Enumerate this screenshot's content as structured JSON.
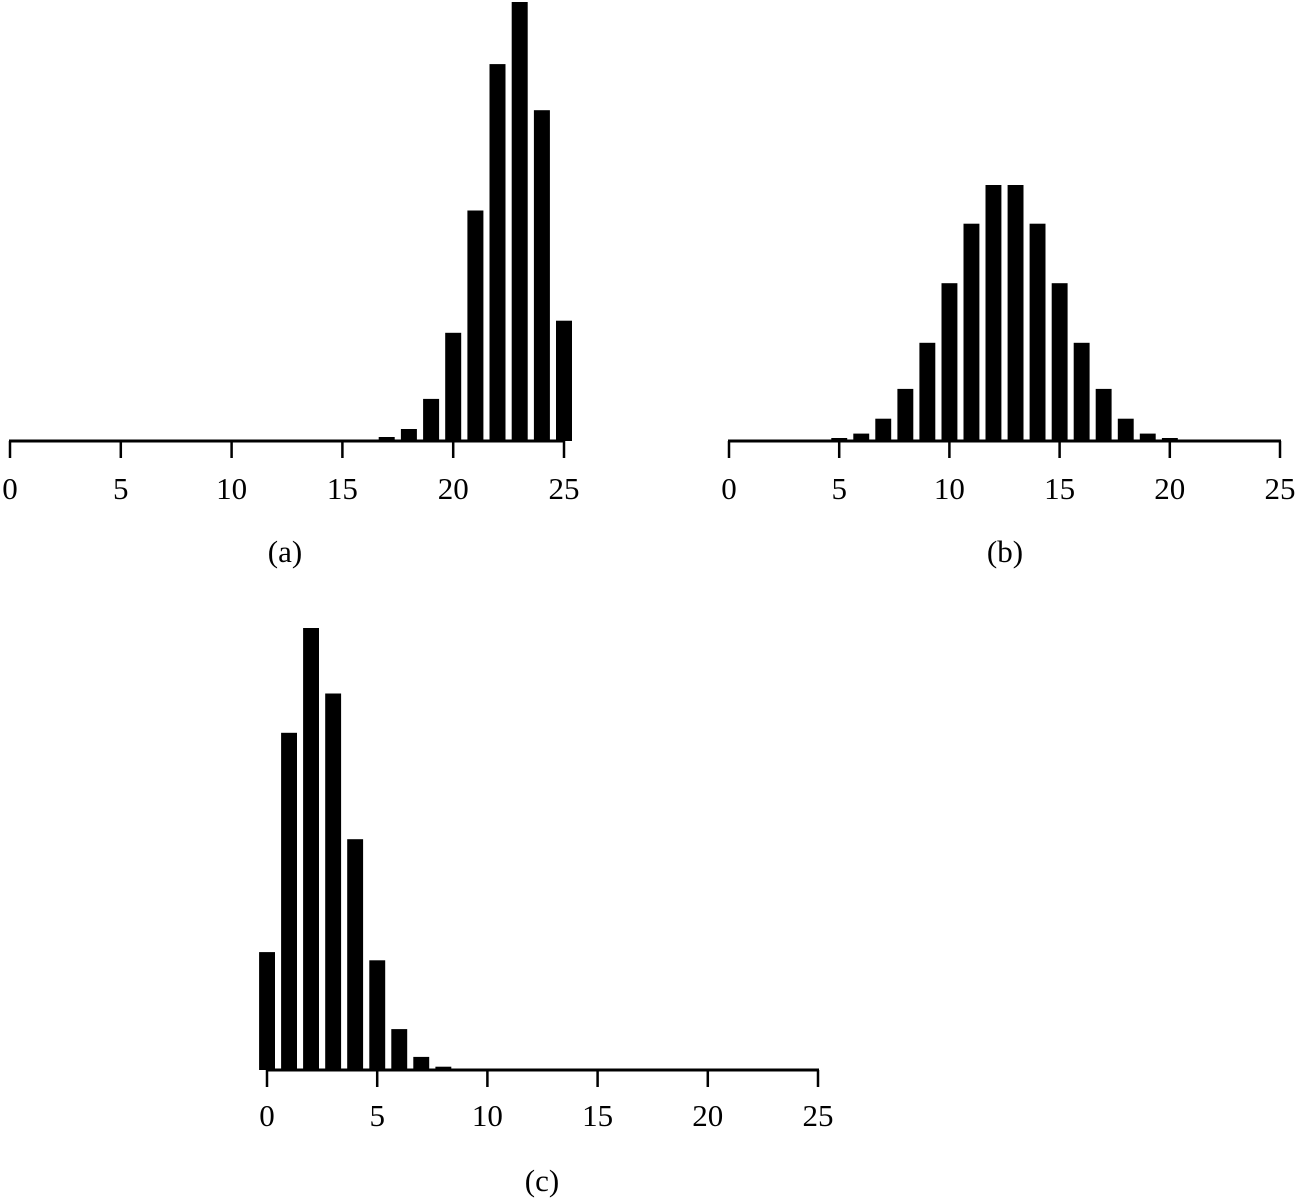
{
  "chart_data": [
    {
      "type": "bar",
      "panel_label": "(a)",
      "xlim": [
        0,
        25
      ],
      "ylim": [
        0,
        0.22
      ],
      "xticks": [
        0,
        5,
        10,
        15,
        20,
        25
      ],
      "x": [
        0,
        1,
        2,
        3,
        4,
        5,
        6,
        7,
        8,
        9,
        10,
        11,
        12,
        13,
        14,
        15,
        16,
        17,
        18,
        19,
        20,
        21,
        22,
        23,
        24,
        25
      ],
      "values": [
        0,
        0,
        0,
        0,
        0,
        0,
        0,
        0,
        0,
        0,
        0,
        0,
        0,
        0,
        0,
        0,
        0,
        0.002,
        0.006,
        0.021,
        0.054,
        0.115,
        0.188,
        0.219,
        0.165,
        0.06
      ],
      "title": "",
      "xlabel": "",
      "ylabel": ""
    },
    {
      "type": "bar",
      "panel_label": "(b)",
      "xlim": [
        0,
        25
      ],
      "ylim": [
        0,
        0.22
      ],
      "xticks": [
        0,
        5,
        10,
        15,
        20,
        25
      ],
      "x": [
        0,
        1,
        2,
        3,
        4,
        5,
        6,
        7,
        8,
        9,
        10,
        11,
        12,
        13,
        14,
        15,
        16,
        17,
        18,
        19,
        20,
        21,
        22,
        23,
        24,
        25
      ],
      "values": [
        0,
        0,
        0,
        0,
        0,
        0.002,
        0.005,
        0.015,
        0.035,
        0.066,
        0.106,
        0.146,
        0.172,
        0.172,
        0.146,
        0.106,
        0.066,
        0.035,
        0.015,
        0.005,
        0.002,
        0,
        0,
        0,
        0,
        0
      ],
      "title": "",
      "xlabel": "",
      "ylabel": ""
    },
    {
      "type": "bar",
      "panel_label": "(c)",
      "xlim": [
        0,
        25
      ],
      "ylim": [
        0,
        0.27
      ],
      "xticks": [
        0,
        5,
        10,
        15,
        20,
        25
      ],
      "x": [
        0,
        1,
        2,
        3,
        4,
        5,
        6,
        7,
        8,
        9,
        10,
        11,
        12,
        13,
        14,
        15,
        16,
        17,
        18,
        19,
        20,
        21,
        22,
        23,
        24,
        25
      ],
      "values": [
        0.072,
        0.206,
        0.27,
        0.23,
        0.141,
        0.067,
        0.025,
        0.008,
        0.002,
        0,
        0,
        0,
        0,
        0,
        0,
        0,
        0,
        0,
        0,
        0,
        0,
        0,
        0,
        0,
        0,
        0
      ],
      "title": "",
      "xlabel": "",
      "ylabel": ""
    }
  ],
  "colors": {
    "bar": "#000000",
    "axis": "#000000",
    "background": "#ffffff"
  }
}
